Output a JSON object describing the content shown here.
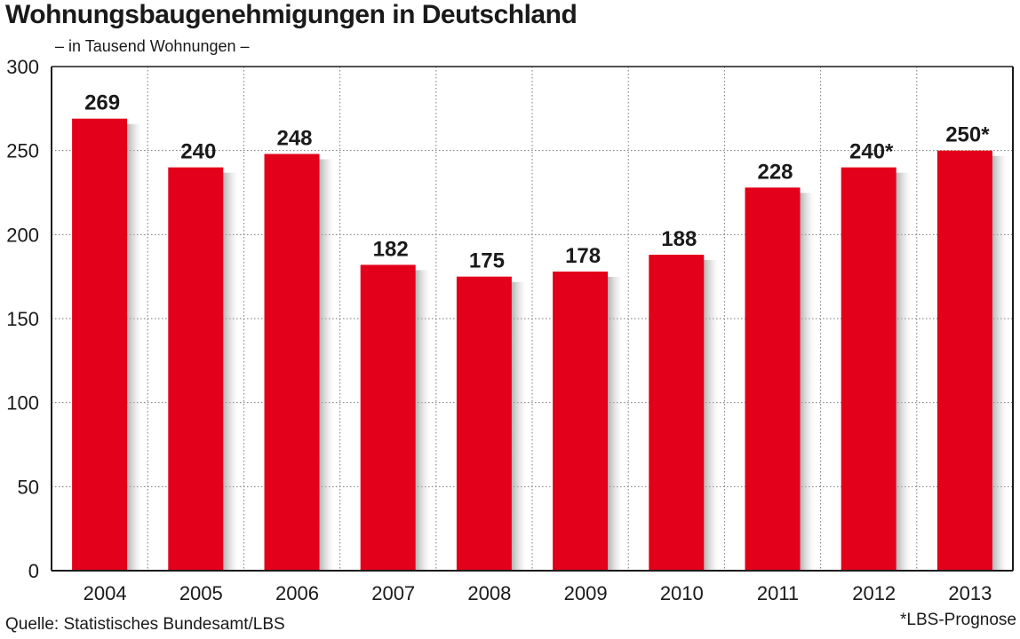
{
  "chart_data": {
    "type": "bar",
    "title": "Wohnungsbaugenehmigungen in Deutschland",
    "subtitle": "– in Tausend Wohnungen –",
    "categories": [
      "2004",
      "2005",
      "2006",
      "2007",
      "2008",
      "2009",
      "2010",
      "2011",
      "2012",
      "2013"
    ],
    "values": [
      269,
      240,
      248,
      182,
      175,
      178,
      188,
      228,
      240,
      250
    ],
    "value_labels": [
      "269",
      "240",
      "248",
      "182",
      "175",
      "178",
      "188",
      "228",
      "240*",
      "250*"
    ],
    "ylim": [
      0,
      300
    ],
    "yticks": [
      0,
      50,
      100,
      150,
      200,
      250,
      300
    ],
    "grid": true,
    "bar_color": "#e2001a"
  },
  "footer": {
    "source": "Quelle: Statistisches Bundesamt/LBS",
    "note": "*LBS-Prognose"
  }
}
